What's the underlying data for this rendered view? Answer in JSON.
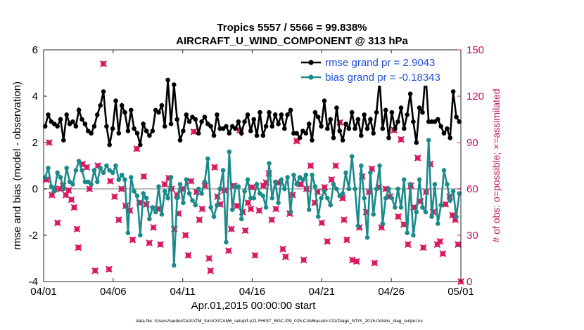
{
  "chart_data": {
    "type": "line",
    "title_line1": "Tropics 5557 / 5566 = 99.838%",
    "title_line2": "AIRCRAFT_U_WIND_COMPONENT @ 313 hPa",
    "xlabel": "Apr.01,2015 00:00:00 start",
    "ylabel": "rmse and bias (model - observation)",
    "y2label": "# of obs: o=possible; ×=assimilated",
    "x_range": [
      0,
      30
    ],
    "ylim": [
      -4,
      6
    ],
    "y2lim": [
      0,
      150
    ],
    "x_ticks": [
      0,
      5,
      10,
      15,
      20,
      25,
      30
    ],
    "x_tick_labels": [
      "04/01",
      "04/06",
      "04/11",
      "04/16",
      "04/21",
      "04/26",
      "05/01"
    ],
    "y_ticks": [
      -4,
      -2,
      0,
      2,
      4,
      6
    ],
    "y_tick_labels": [
      "-4",
      "-2",
      "0",
      "2",
      "4",
      "6"
    ],
    "y2_ticks": [
      0,
      30,
      60,
      90,
      120,
      150
    ],
    "y2_tick_labels": [
      "0",
      "30",
      "60",
      "90",
      "120",
      "150"
    ],
    "colors": {
      "rmse": "#000000",
      "bias": "#1a8a8a",
      "obs": "#d81b60",
      "zero_line": "#bbbbbb"
    },
    "legend": {
      "position": "top-right",
      "entries": [
        "rmse grand pr = 2.9043",
        "bias grand pr = -0.18343"
      ]
    },
    "footnote": "data file: /Users/raeder/DAI/ATM_forcXX/CAM6_setup/f.e21.FHIST_BGC.f09_025.CAM6assim.011/Diags_NTrS_2015-04/obs_diag_output.nc",
    "series": [
      {
        "name": "rmse",
        "values": [
          2.7,
          3.2,
          2.9,
          2.8,
          2.7,
          3.0,
          2.1,
          3.2,
          2.8,
          2.9,
          2.7,
          3.4,
          3.0,
          2.8,
          2.5,
          2.4,
          2.7,
          3.2,
          3.6,
          4.2,
          2.7,
          1.9,
          2.6,
          3.8,
          2.4,
          3.6,
          3.3,
          2.5,
          3.4,
          2.6,
          2.4,
          1.9,
          2.8,
          2.5,
          2.3,
          2.5,
          3.4,
          3.3,
          3.6,
          2.7,
          4.7,
          2.8,
          4.5,
          3.0,
          2.1,
          2.5,
          3.2,
          2.9,
          3.1,
          3.0,
          2.4,
          2.9,
          3.1,
          2.8,
          2.7,
          2.3,
          3.2,
          2.6,
          2.6,
          2.7,
          2.4,
          2.7,
          2.6,
          2.9,
          2.4,
          2.9,
          3.2,
          2.5,
          3.0,
          2.3,
          3.3,
          2.3,
          2.7,
          3.3,
          2.7,
          3.2,
          2.8,
          3.2,
          2.6,
          3.2,
          3.4,
          2.4,
          2.4,
          2.2,
          2.5,
          2.4,
          2.8,
          2.1,
          3.3,
          3.1,
          2.7,
          3.8,
          2.6,
          3.0,
          2.2,
          3.5,
          2.5,
          2.1,
          2.8,
          2.6,
          3.3,
          2.6,
          3.0,
          2.3,
          3.2,
          2.6,
          3.0,
          2.4,
          3.3,
          4.7,
          2.6,
          3.4,
          2.2,
          3.3,
          2.6,
          2.9,
          3.5,
          2.6,
          3.2,
          4.1,
          2.9,
          2.0,
          3.5,
          3.3,
          5.0,
          2.9,
          2.9,
          2.9,
          3.0,
          2.7,
          2.4,
          2.6,
          2.2,
          4.2,
          3.1,
          2.9
        ]
      },
      {
        "name": "bias",
        "values": [
          0.5,
          0.9,
          0.1,
          -0.1,
          0.7,
          0.5,
          0.0,
          0.9,
          0.3,
          0.2,
          0.8,
          1.2,
          0.8,
          0.3,
          0.3,
          0.2,
          0.8,
          0.3,
          0.9,
          0.7,
          1.0,
          0.8,
          0.7,
          1.0,
          0.4,
          0.6,
          0.4,
          -1.9,
          0.5,
          -0.1,
          -0.3,
          -2.0,
          -0.2,
          -0.4,
          -1.3,
          -0.8,
          -1.0,
          0.1,
          -1.1,
          -0.1,
          -0.4,
          0.5,
          -3.3,
          -0.4,
          0.2,
          -0.6,
          0.4,
          -0.2,
          -0.5,
          -0.7,
          0.0,
          -0.2,
          0.3,
          1.3,
          -0.8,
          -1.2,
          -0.7,
          0.0,
          0.8,
          -2.3,
          1.6,
          -0.9,
          0.1,
          0.1,
          -1.3,
          -0.1,
          0.4,
          -0.4,
          -0.4,
          0.2,
          -0.2,
          -0.3,
          -0.8,
          1.1,
          -0.4,
          0.3,
          -0.6,
          0.4,
          0.0,
          0.5,
          -1.0,
          0.6,
          0.2,
          0.5,
          0.4,
          0.6,
          -0.9,
          0.6,
          0.1,
          -1.2,
          -0.4,
          -0.1,
          -0.4,
          -0.7,
          0.2,
          0.0,
          -0.3,
          -0.2,
          0.7,
          0.0,
          1.4,
          0.0,
          -1.6,
          1.0,
          -0.4,
          -2.1,
          0.7,
          -1.1,
          0.0,
          1.0,
          -1.5,
          -0.4,
          0.0,
          -0.4,
          -0.8,
          0.0,
          -0.8,
          0.4,
          -1.9,
          0.2,
          -2.0,
          -1.0,
          0.4,
          -0.8,
          -1.0,
          2.1,
          -1.2,
          0.2,
          -1.5,
          -0.7,
          0.8,
          0.2,
          -0.5,
          -0.1,
          -1.2,
          -0.2
        ]
      },
      {
        "name": "obs_count",
        "points": [
          [
            0.2,
            66
          ],
          [
            0.4,
            90
          ],
          [
            0.6,
            56
          ],
          [
            0.8,
            60
          ],
          [
            1.0,
            38
          ],
          [
            1.2,
            60
          ],
          [
            1.4,
            62
          ],
          [
            1.6,
            56
          ],
          [
            1.8,
            59
          ],
          [
            2.0,
            53
          ],
          [
            2.2,
            48
          ],
          [
            2.4,
            34
          ],
          [
            2.5,
            22
          ],
          [
            2.8,
            76
          ],
          [
            3.1,
            74
          ],
          [
            3.3,
            60
          ],
          [
            3.7,
            7
          ],
          [
            3.9,
            75
          ],
          [
            4.3,
            141
          ],
          [
            4.7,
            8
          ],
          [
            4.8,
            65
          ],
          [
            5.1,
            55
          ],
          [
            5.4,
            40
          ],
          [
            5.6,
            60
          ],
          [
            5.9,
            49
          ],
          [
            6.2,
            46
          ],
          [
            6.4,
            27
          ],
          [
            6.7,
            86
          ],
          [
            6.9,
            51
          ],
          [
            7.2,
            68
          ],
          [
            7.4,
            50
          ],
          [
            7.6,
            25
          ],
          [
            7.9,
            35
          ],
          [
            8.2,
            47
          ],
          [
            8.4,
            24
          ],
          [
            8.7,
            63
          ],
          [
            9.0,
            67
          ],
          [
            9.2,
            60
          ],
          [
            9.4,
            34
          ],
          [
            9.6,
            56
          ],
          [
            9.7,
            44
          ],
          [
            10.0,
            60
          ],
          [
            10.2,
            30
          ],
          [
            10.4,
            17
          ],
          [
            10.6,
            65
          ],
          [
            10.8,
            97
          ],
          [
            11.0,
            58
          ],
          [
            11.2,
            40
          ],
          [
            11.4,
            47
          ],
          [
            11.6,
            62
          ],
          [
            11.9,
            15
          ],
          [
            12.0,
            7
          ],
          [
            12.3,
            74
          ],
          [
            12.5,
            55
          ],
          [
            12.7,
            50
          ],
          [
            13.0,
            59
          ],
          [
            13.3,
            20
          ],
          [
            13.5,
            34
          ],
          [
            13.7,
            62
          ],
          [
            13.9,
            49
          ],
          [
            14.1,
            98
          ],
          [
            14.3,
            45
          ],
          [
            14.5,
            33
          ],
          [
            14.7,
            51
          ],
          [
            14.9,
            47
          ],
          [
            15.0,
            61
          ],
          [
            15.2,
            17
          ],
          [
            15.5,
            46
          ],
          [
            15.8,
            62
          ],
          [
            16.0,
            64
          ],
          [
            16.2,
            70
          ],
          [
            16.4,
            40
          ],
          [
            16.7,
            47
          ],
          [
            16.9,
            64
          ],
          [
            17.2,
            21
          ],
          [
            17.4,
            16
          ],
          [
            17.7,
            44
          ],
          [
            17.9,
            56
          ],
          [
            18.2,
            91
          ],
          [
            18.5,
            63
          ],
          [
            18.7,
            14
          ],
          [
            18.9,
            60
          ],
          [
            19.2,
            75
          ],
          [
            19.5,
            51
          ],
          [
            19.7,
            58
          ],
          [
            20.0,
            38
          ],
          [
            20.2,
            61
          ],
          [
            20.4,
            26
          ],
          [
            20.7,
            66
          ],
          [
            21.0,
            75
          ],
          [
            21.3,
            103
          ],
          [
            21.5,
            54
          ],
          [
            21.6,
            40
          ],
          [
            21.8,
            27
          ],
          [
            22.2,
            14
          ],
          [
            22.5,
            13
          ],
          [
            22.7,
            35
          ],
          [
            22.9,
            68
          ],
          [
            23.2,
            45
          ],
          [
            23.4,
            58
          ],
          [
            23.6,
            73
          ],
          [
            23.8,
            12
          ],
          [
            24.1,
            61
          ],
          [
            24.3,
            35
          ],
          [
            24.6,
            60
          ],
          [
            24.9,
            55
          ],
          [
            25.2,
            98
          ],
          [
            25.5,
            42
          ],
          [
            25.7,
            92
          ],
          [
            25.9,
            37
          ],
          [
            26.2,
            24
          ],
          [
            26.4,
            62
          ],
          [
            26.6,
            48
          ],
          [
            26.9,
            80
          ],
          [
            27.1,
            52
          ],
          [
            27.3,
            22
          ],
          [
            27.5,
            58
          ],
          [
            27.8,
            76
          ],
          [
            28.0,
            45
          ],
          [
            28.3,
            24
          ],
          [
            28.5,
            26
          ],
          [
            28.7,
            18
          ],
          [
            28.9,
            50
          ],
          [
            29.2,
            55
          ],
          [
            29.4,
            43
          ],
          [
            29.6,
            40
          ],
          [
            29.8,
            24
          ],
          [
            30.0,
            0
          ]
        ]
      }
    ]
  }
}
